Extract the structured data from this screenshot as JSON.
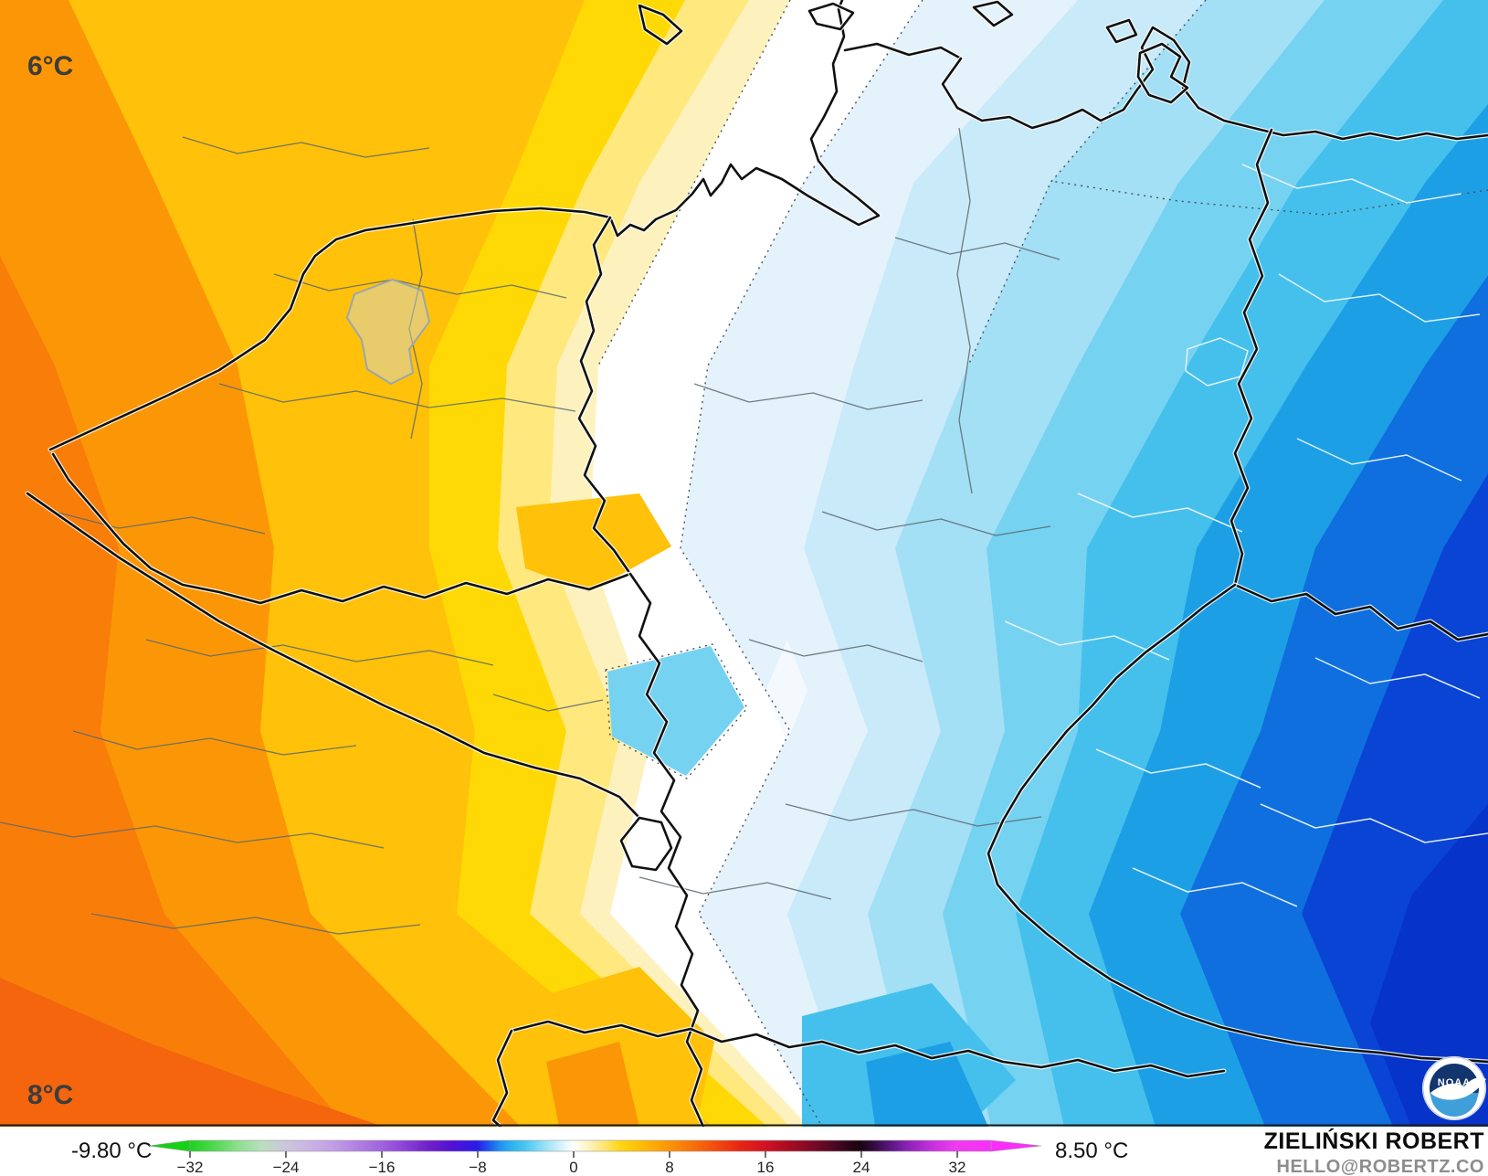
{
  "map": {
    "label_top_left": "6°C",
    "label_bottom_left": "8°C",
    "noaa_logo_text": "NOAA",
    "palette": {
      "deep_orange": "#F87E09",
      "orange": "#FB9706",
      "red_orange": "#F4650E",
      "gold": "#FFC10A",
      "yellow": "#FFD905",
      "pale_yellow": "#FFE87E",
      "cream": "#FDF2BE",
      "white": "#FFFFFF",
      "pale_blue": "#E4F2FB",
      "light_cyan": "#C9EAF8",
      "cyan": "#A3DFF5",
      "sky": "#76D2F1",
      "bright_blue": "#45C0EC",
      "blue": "#1D9FE5",
      "deep_blue": "#0F6FDE",
      "dark_blue": "#0A44D4",
      "darkest_blue": "#0634C8"
    }
  },
  "colorbar": {
    "min_label": "-9.80 °C",
    "max_label": "8.50 °C",
    "ticks": [
      "−32",
      "−24",
      "−16",
      "−8",
      "0",
      "8",
      "16",
      "24",
      "32"
    ],
    "arrow_left_color": "#15D115",
    "arrow_right_color": "#FB2DFB",
    "gradient": [
      {
        "o": 0.0,
        "c": "#1ED11E"
      },
      {
        "o": 0.03,
        "c": "#4FD94F"
      },
      {
        "o": 0.06,
        "c": "#8CE08C"
      },
      {
        "o": 0.09,
        "c": "#B9DFC0"
      },
      {
        "o": 0.119,
        "c": "#CDC6DC"
      },
      {
        "o": 0.149,
        "c": "#CBB2E4"
      },
      {
        "o": 0.179,
        "c": "#C29DE6"
      },
      {
        "o": 0.209,
        "c": "#B180E2"
      },
      {
        "o": 0.239,
        "c": "#A163DE"
      },
      {
        "o": 0.269,
        "c": "#8A41D6"
      },
      {
        "o": 0.299,
        "c": "#6F1FC8"
      },
      {
        "o": 0.328,
        "c": "#5010D6"
      },
      {
        "o": 0.358,
        "c": "#2B1BE8"
      },
      {
        "o": 0.373,
        "c": "#1E55F0"
      },
      {
        "o": 0.388,
        "c": "#2196F0"
      },
      {
        "o": 0.403,
        "c": "#2FB4F0"
      },
      {
        "o": 0.418,
        "c": "#49C6F1"
      },
      {
        "o": 0.433,
        "c": "#78D7F5"
      },
      {
        "o": 0.448,
        "c": "#A7E6F9"
      },
      {
        "o": 0.463,
        "c": "#D6F2FC"
      },
      {
        "o": 0.478,
        "c": "#FFFFFF"
      },
      {
        "o": 0.493,
        "c": "#FEF6CF"
      },
      {
        "o": 0.507,
        "c": "#FEEC9B"
      },
      {
        "o": 0.522,
        "c": "#FFE35C"
      },
      {
        "o": 0.537,
        "c": "#FFD614"
      },
      {
        "o": 0.552,
        "c": "#FFC808"
      },
      {
        "o": 0.567,
        "c": "#FFB806"
      },
      {
        "o": 0.597,
        "c": "#FB9606"
      },
      {
        "o": 0.627,
        "c": "#F87109"
      },
      {
        "o": 0.657,
        "c": "#F14B0E"
      },
      {
        "o": 0.687,
        "c": "#E72413"
      },
      {
        "o": 0.716,
        "c": "#D31322"
      },
      {
        "o": 0.746,
        "c": "#A90C22"
      },
      {
        "o": 0.776,
        "c": "#7C0A26"
      },
      {
        "o": 0.806,
        "c": "#4A0722"
      },
      {
        "o": 0.821,
        "c": "#2E0519"
      },
      {
        "o": 0.836,
        "c": "#1C0310"
      },
      {
        "o": 0.851,
        "c": "#2E0A36"
      },
      {
        "o": 0.866,
        "c": "#4A1268"
      },
      {
        "o": 0.881,
        "c": "#671A92"
      },
      {
        "o": 0.896,
        "c": "#8B22B4"
      },
      {
        "o": 0.925,
        "c": "#C330DC"
      },
      {
        "o": 0.955,
        "c": "#EE3BEE"
      },
      {
        "o": 1.0,
        "c": "#FB2DFB"
      }
    ]
  },
  "credit": {
    "name": "ZIELIŃSKI ROBERT",
    "email": "HELLO@ROBERTZ.CO"
  }
}
